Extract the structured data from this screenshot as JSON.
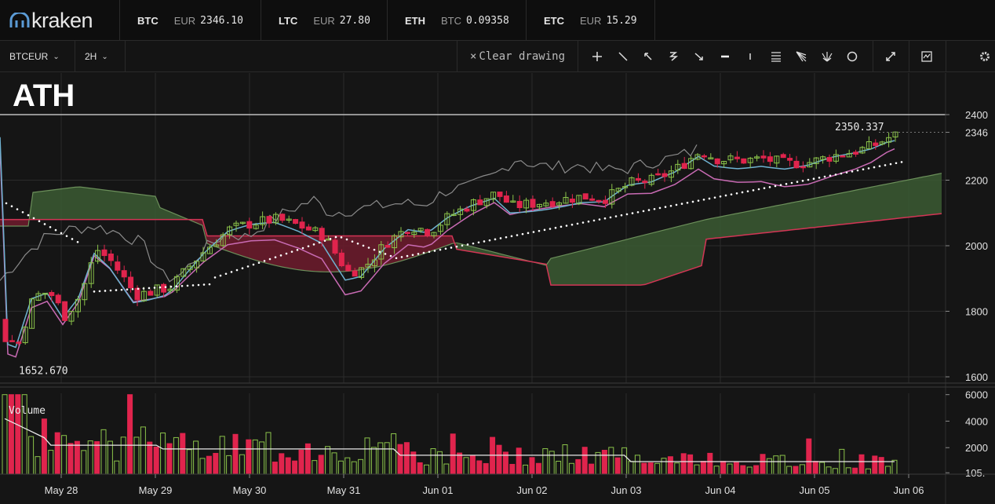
{
  "header": {
    "logo_text": "kraken",
    "tickers": [
      {
        "symbol": "BTC",
        "currency": "EUR",
        "value": "2346.10"
      },
      {
        "symbol": "LTC",
        "currency": "EUR",
        "value": "27.80"
      },
      {
        "symbol": "ETH",
        "currency": "BTC",
        "value": "0.09358"
      },
      {
        "symbol": "ETC",
        "currency": "EUR",
        "value": "15.29"
      }
    ]
  },
  "toolbar": {
    "pair": "BTCEUR",
    "interval": "2H",
    "clear_drawing": "Clear drawing",
    "tools": [
      "crosshair-icon",
      "line-icon",
      "arrow-line-icon",
      "curve-icon",
      "ray-icon",
      "horizontal-line-icon",
      "vertical-line-icon",
      "parallel-lines-icon",
      "fan-icon",
      "fib-fan-icon",
      "circle-icon",
      "fullscreen-icon",
      "indicators-icon",
      "settings-icon"
    ]
  },
  "annotation": "ATH",
  "chart_data": {
    "type": "candlestick",
    "price_axis": {
      "ticks": [
        1600,
        1800,
        2000,
        2200,
        2346,
        2400
      ],
      "range": [
        1585,
        2540
      ]
    },
    "current_price_label": "2346",
    "high_label": "2350.337",
    "low_label": "1652.670",
    "ath_line": 2400,
    "dates": [
      "May 28",
      "May 29",
      "May 30",
      "May 31",
      "Jun 01",
      "Jun 02",
      "Jun 03",
      "Jun 04",
      "Jun 05",
      "Jun 06"
    ],
    "volume": {
      "label": "Volume",
      "ticks": [
        "6000",
        "4000",
        "2000",
        "105."
      ],
      "range": [
        0,
        6100
      ]
    },
    "colors": {
      "up": "#8bc34a",
      "down": "#e0244d",
      "cloud_bull": "#3b5a33",
      "cloud_bear": "#6e1b2d",
      "tenkan": "#6fb2d1",
      "kijun": "#c96bb4",
      "lagging": "#8a8a8a",
      "psar": "#ffffff"
    }
  }
}
